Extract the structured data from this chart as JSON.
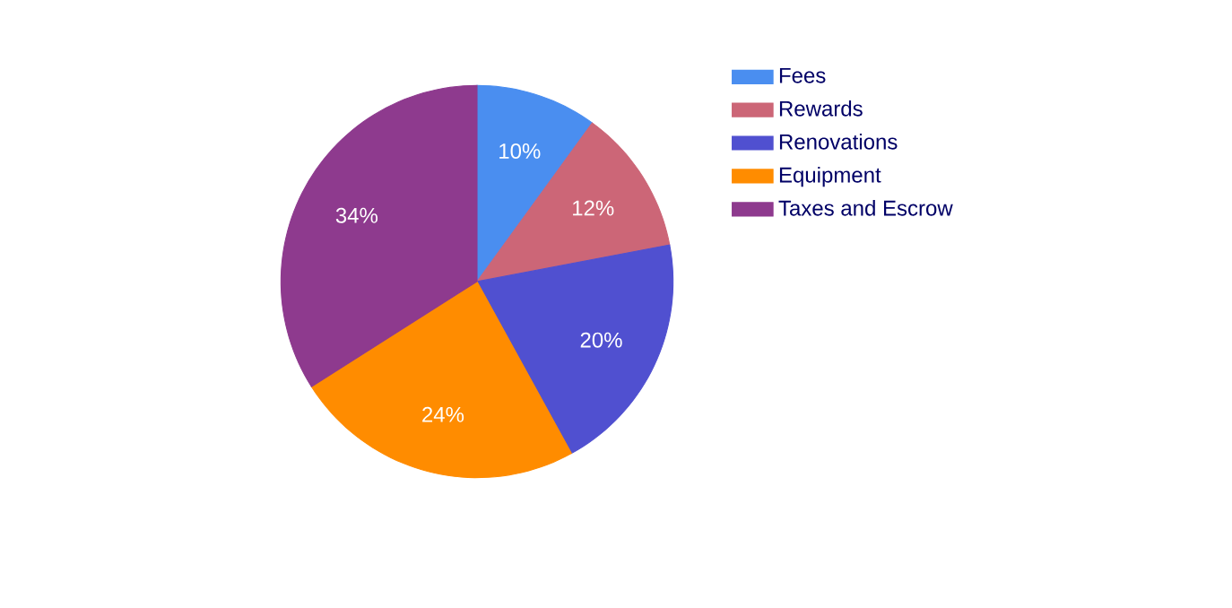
{
  "chart_data": {
    "type": "pie",
    "categories": [
      "Fees",
      "Rewards",
      "Renovations",
      "Equipment",
      "Taxes and Escrow"
    ],
    "values": [
      10,
      12,
      20,
      24,
      34
    ],
    "colors": [
      "#4a8ef0",
      "#cc6677",
      "#5050d0",
      "#ff8c00",
      "#8e3a8e"
    ],
    "value_labels": [
      "10%",
      "12%",
      "20%",
      "24%",
      "34%"
    ],
    "legend": "right"
  }
}
